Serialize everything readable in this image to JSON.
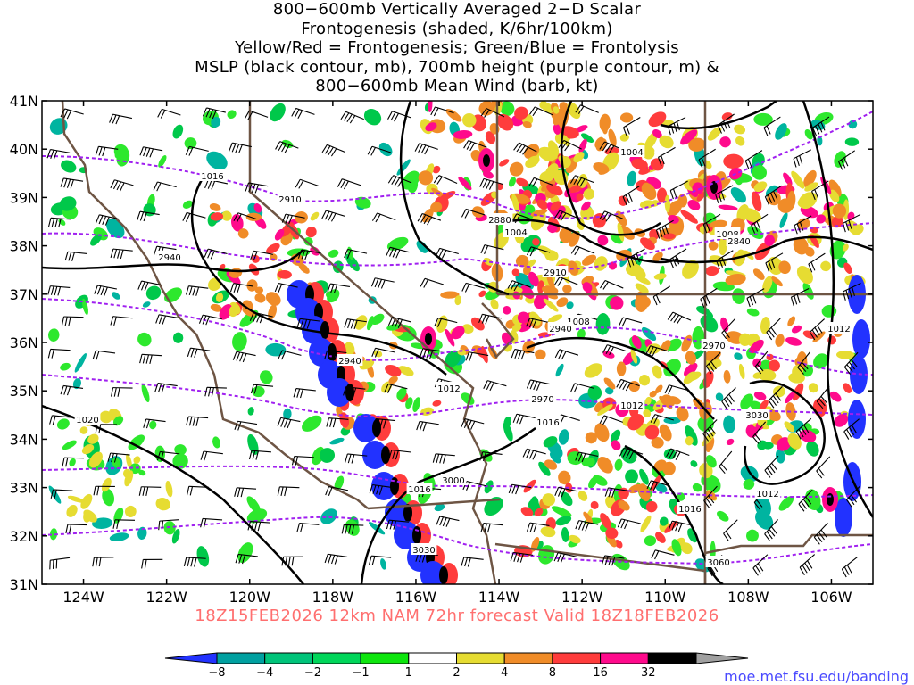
{
  "title": {
    "lines": [
      "800−600mb Vertically Averaged 2−D Scalar",
      "Frontogenesis (shaded, K/6hr/100km)",
      "Yellow/Red = Frontogenesis;  Green/Blue = Frontolysis",
      "MSLP (black contour, mb), 700mb height (purple contour, m) &",
      "800−600mb Mean Wind (barb, kt)"
    ]
  },
  "map": {
    "lon_range": [
      -125,
      -105
    ],
    "lat_range": [
      31,
      41
    ],
    "x_ticks": [
      "124W",
      "122W",
      "120W",
      "118W",
      "116W",
      "114W",
      "112W",
      "110W",
      "108W",
      "106W"
    ],
    "y_ticks": [
      "41N",
      "40N",
      "39N",
      "38N",
      "37N",
      "36N",
      "35N",
      "34N",
      "33N",
      "32N",
      "31N"
    ],
    "mslp_labels": [
      "1016",
      "1004",
      "1004",
      "1008",
      "1008",
      "1012",
      "1012",
      "1012",
      "1016",
      "1016",
      "1020",
      "1012",
      "1016"
    ],
    "height_labels": [
      "2910",
      "2880",
      "2940",
      "2910",
      "2940",
      "2940",
      "2840",
      "2970",
      "2970",
      "3000",
      "3030",
      "3060",
      "3030"
    ]
  },
  "footer": "18Z15FEB2026 12km NAM 72hr forecast Valid 18Z18FEB2026",
  "colorbar": {
    "labels": [
      "−8",
      "−4",
      "−2",
      "−1",
      "1",
      "2",
      "4",
      "8",
      "16",
      "32"
    ],
    "colors": [
      "#2232ff",
      "#00a0a0",
      "#00c47a",
      "#00d65a",
      "#0ee60e",
      "#ffffff",
      "#e6dc32",
      "#f08c28",
      "#ff3c3c",
      "#ff0a8c",
      "#000000",
      "#a0a0a0"
    ]
  },
  "credit": "moe.met.fsu.edu/banding"
}
